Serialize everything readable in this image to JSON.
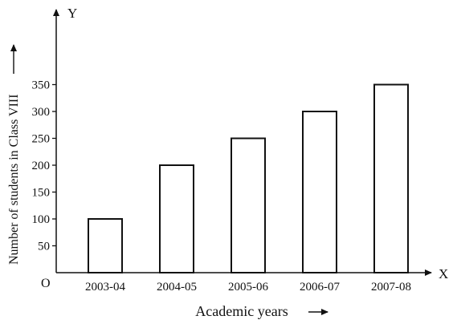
{
  "chart_data": {
    "type": "bar",
    "title": "",
    "xlabel": "Academic years",
    "ylabel": "Number of students in Class VIII",
    "x_axis_letter": "X",
    "y_axis_letter": "Y",
    "origin_label": "O",
    "categories": [
      "2003-04",
      "2004-05",
      "2005-06",
      "2006-07",
      "2007-08"
    ],
    "values": [
      100,
      200,
      250,
      300,
      350
    ],
    "ylim": [
      0,
      350
    ],
    "yticks": [
      50,
      100,
      150,
      200,
      250,
      300,
      350
    ],
    "grid": false,
    "bar_fill": "#ffffff",
    "bar_stroke": "#111111"
  }
}
